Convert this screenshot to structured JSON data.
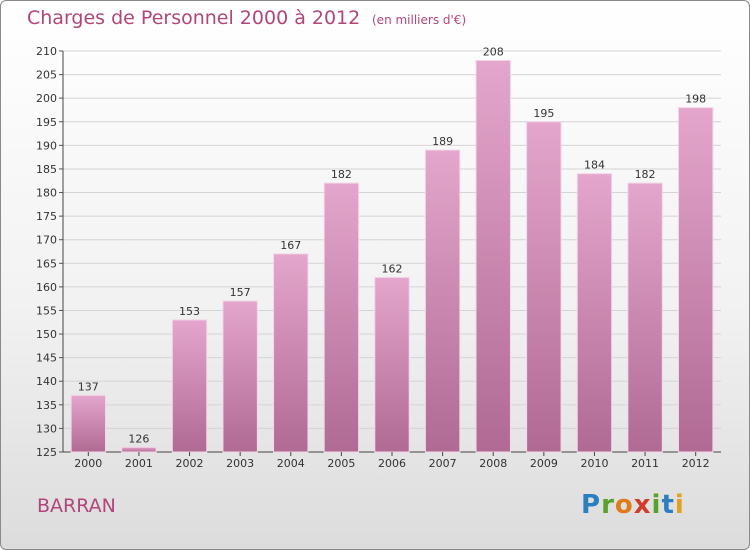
{
  "title": "Charges de Personnel 2000 à 2012",
  "unit": "(en milliers d'€)",
  "commune": "BARRAN",
  "logo": {
    "text": "Proxiti",
    "letters": [
      "P",
      "r",
      "o",
      "x",
      "i",
      "t",
      "i"
    ],
    "colors": [
      "#2a7fc1",
      "#5aa02c",
      "#e07b1a",
      "#d23b2b",
      "#5aa02c",
      "#2a7fc1",
      "#e0a020"
    ]
  },
  "colors": {
    "bar_top": "#e4a6cc",
    "bar_bottom": "#b06a93",
    "text_accent": "#b0467a"
  },
  "chart_data": {
    "type": "bar",
    "categories": [
      "2000",
      "2001",
      "2002",
      "2003",
      "2004",
      "2005",
      "2006",
      "2007",
      "2008",
      "2009",
      "2010",
      "2011",
      "2012"
    ],
    "values": [
      137,
      126,
      153,
      157,
      167,
      182,
      162,
      189,
      208,
      195,
      184,
      182,
      198
    ],
    "title": "Charges de Personnel 2000 à 2012",
    "xlabel": "",
    "ylabel": "",
    "ylim": [
      125,
      210
    ],
    "yticks": [
      125,
      130,
      135,
      140,
      145,
      150,
      155,
      160,
      165,
      170,
      175,
      180,
      185,
      190,
      195,
      200,
      205,
      210
    ],
    "grid": true,
    "legend": "none"
  }
}
